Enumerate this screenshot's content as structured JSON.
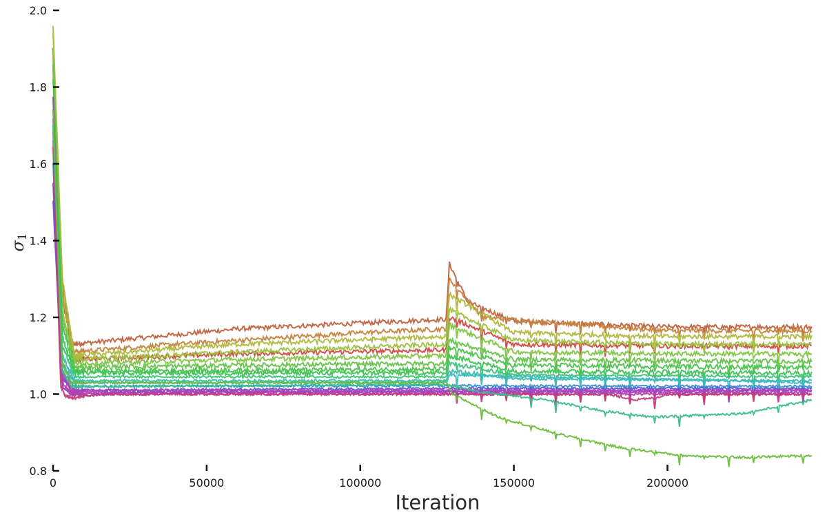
{
  "chart_data": {
    "type": "line",
    "title": "",
    "xlabel": "Iteration",
    "ylabel": "σ1",
    "ylabel_symbol": "σ",
    "ylabel_subscript": "1",
    "xlim": [
      0,
      247000
    ],
    "ylim": [
      0.8,
      2.0
    ],
    "x_ticks": [
      0,
      50000,
      100000,
      150000,
      200000
    ],
    "x_tick_labels": [
      "0",
      "50000",
      "100000",
      "150000",
      "200000"
    ],
    "y_ticks": [
      0.8,
      1.0,
      1.2,
      1.4,
      1.6,
      1.8,
      2.0
    ],
    "y_tick_labels": [
      "0.8",
      "1.0",
      "1.2",
      "1.4",
      "1.6",
      "1.8",
      "2.0"
    ],
    "grid": false,
    "legend": "none",
    "series": [
      {
        "color": "#c0623f",
        "points": [
          [
            0,
            1.9
          ],
          [
            3000,
            1.3
          ],
          [
            6000,
            1.13
          ],
          [
            20000,
            1.14
          ],
          [
            60000,
            1.17
          ],
          [
            100000,
            1.185
          ],
          [
            128000,
            1.195
          ],
          [
            129000,
            1.34
          ],
          [
            135000,
            1.24
          ],
          [
            150000,
            1.19
          ],
          [
            200000,
            1.175
          ],
          [
            247000,
            1.175
          ]
        ]
      },
      {
        "color": "#c4843f",
        "points": [
          [
            0,
            1.88
          ],
          [
            3000,
            1.28
          ],
          [
            6000,
            1.11
          ],
          [
            40000,
            1.13
          ],
          [
            100000,
            1.16
          ],
          [
            128000,
            1.17
          ],
          [
            129000,
            1.3
          ],
          [
            140000,
            1.2
          ],
          [
            200000,
            1.165
          ],
          [
            247000,
            1.165
          ]
        ]
      },
      {
        "color": "#d04a45",
        "points": [
          [
            0,
            1.85
          ],
          [
            3000,
            1.25
          ],
          [
            7000,
            1.09
          ],
          [
            60000,
            1.105
          ],
          [
            128000,
            1.115
          ],
          [
            129000,
            1.2
          ],
          [
            150000,
            1.13
          ],
          [
            200000,
            1.125
          ],
          [
            247000,
            1.125
          ]
        ]
      },
      {
        "color": "#b0b83d",
        "points": [
          [
            0,
            1.96
          ],
          [
            3000,
            1.3
          ],
          [
            7000,
            1.1
          ],
          [
            60000,
            1.13
          ],
          [
            128000,
            1.15
          ],
          [
            129000,
            1.26
          ],
          [
            150000,
            1.16
          ],
          [
            200000,
            1.15
          ],
          [
            247000,
            1.15
          ]
        ]
      },
      {
        "color": "#9cc13f",
        "points": [
          [
            0,
            1.94
          ],
          [
            3000,
            1.26
          ],
          [
            7000,
            1.09
          ],
          [
            60000,
            1.11
          ],
          [
            128000,
            1.13
          ],
          [
            129000,
            1.22
          ],
          [
            150000,
            1.14
          ],
          [
            200000,
            1.13
          ],
          [
            247000,
            1.13
          ]
        ]
      },
      {
        "color": "#82c446",
        "points": [
          [
            0,
            1.9
          ],
          [
            3000,
            1.22
          ],
          [
            7000,
            1.08
          ],
          [
            60000,
            1.09
          ],
          [
            128000,
            1.1
          ],
          [
            129000,
            1.18
          ],
          [
            150000,
            1.11
          ],
          [
            200000,
            1.105
          ],
          [
            247000,
            1.105
          ]
        ]
      },
      {
        "color": "#66c24a",
        "points": [
          [
            0,
            1.86
          ],
          [
            3000,
            1.2
          ],
          [
            7000,
            1.07
          ],
          [
            60000,
            1.075
          ],
          [
            128000,
            1.08
          ],
          [
            129000,
            1.14
          ],
          [
            150000,
            1.09
          ],
          [
            247000,
            1.085
          ]
        ]
      },
      {
        "color": "#4cc24c",
        "points": [
          [
            0,
            1.82
          ],
          [
            3000,
            1.18
          ],
          [
            7000,
            1.06
          ],
          [
            128000,
            1.065
          ],
          [
            129000,
            1.12
          ],
          [
            150000,
            1.075
          ],
          [
            247000,
            1.07
          ]
        ]
      },
      {
        "color": "#3ec252",
        "points": [
          [
            0,
            1.78
          ],
          [
            3000,
            1.15
          ],
          [
            7000,
            1.055
          ],
          [
            128000,
            1.055
          ],
          [
            129000,
            1.1
          ],
          [
            150000,
            1.06
          ],
          [
            247000,
            1.055
          ]
        ]
      },
      {
        "color": "#3cc27a",
        "points": [
          [
            0,
            1.74
          ],
          [
            3000,
            1.13
          ],
          [
            7000,
            1.045
          ],
          [
            128000,
            1.045
          ],
          [
            129000,
            1.08
          ],
          [
            150000,
            1.05
          ],
          [
            247000,
            1.045
          ]
        ]
      },
      {
        "color": "#3cbea6",
        "points": [
          [
            0,
            1.7
          ],
          [
            3000,
            1.1
          ],
          [
            7000,
            1.035
          ],
          [
            128000,
            1.035
          ],
          [
            129000,
            1.06
          ],
          [
            150000,
            1.04
          ],
          [
            247000,
            1.035
          ]
        ]
      },
      {
        "color": "#3cb6c6",
        "points": [
          [
            0,
            1.66
          ],
          [
            3000,
            1.08
          ],
          [
            7000,
            1.03
          ],
          [
            128000,
            1.03
          ],
          [
            129000,
            1.05
          ],
          [
            247000,
            1.03
          ]
        ]
      },
      {
        "color": "#3c8fd0",
        "points": [
          [
            0,
            1.6
          ],
          [
            3000,
            1.06
          ],
          [
            7000,
            1.02
          ],
          [
            128000,
            1.022
          ],
          [
            247000,
            1.02
          ]
        ]
      },
      {
        "color": "#5a5ad0",
        "points": [
          [
            0,
            1.55
          ],
          [
            3000,
            1.04
          ],
          [
            7000,
            1.01
          ],
          [
            128000,
            1.015
          ],
          [
            247000,
            1.015
          ]
        ]
      },
      {
        "color": "#7a4ad0",
        "points": [
          [
            0,
            1.5
          ],
          [
            3000,
            1.02
          ],
          [
            6000,
            1.0
          ],
          [
            12000,
            0.995
          ],
          [
            18000,
            1.0
          ],
          [
            22000,
            1.005
          ],
          [
            247000,
            1.01
          ]
        ]
      },
      {
        "color": "#9a44c4",
        "points": [
          [
            0,
            1.72
          ],
          [
            3000,
            1.05
          ],
          [
            6000,
            1.005
          ],
          [
            247000,
            1.005
          ]
        ]
      },
      {
        "color": "#b840b8",
        "points": [
          [
            0,
            1.78
          ],
          [
            3000,
            1.06
          ],
          [
            6000,
            1.01
          ],
          [
            247000,
            1.01
          ]
        ]
      },
      {
        "color": "#c03e9c",
        "points": [
          [
            0,
            1.68
          ],
          [
            3000,
            1.03
          ],
          [
            6000,
            1.0
          ],
          [
            247000,
            1.0
          ]
        ]
      },
      {
        "color": "#c43c7a",
        "points": [
          [
            0,
            1.64
          ],
          [
            2500,
            1.02
          ],
          [
            4000,
            0.995
          ],
          [
            7000,
            0.99
          ],
          [
            10000,
            0.995
          ],
          [
            14000,
            1.0
          ],
          [
            180000,
            1.0
          ],
          [
            190000,
            0.985
          ],
          [
            196000,
            0.99
          ],
          [
            200000,
            1.0
          ],
          [
            247000,
            1.0
          ]
        ]
      },
      {
        "color": "#3cbd8a",
        "points": [
          [
            0,
            1.7
          ],
          [
            3000,
            1.06
          ],
          [
            6000,
            1.02
          ],
          [
            128000,
            1.025
          ],
          [
            140000,
            1.005
          ],
          [
            160000,
            0.985
          ],
          [
            180000,
            0.955
          ],
          [
            195000,
            0.94
          ],
          [
            210000,
            0.945
          ],
          [
            225000,
            0.95
          ],
          [
            247000,
            0.985
          ]
        ]
      },
      {
        "color": "#6cbd3c",
        "points": [
          [
            0,
            1.74
          ],
          [
            3000,
            1.08
          ],
          [
            6000,
            1.03
          ],
          [
            128000,
            1.03
          ],
          [
            130000,
            1.0
          ],
          [
            145000,
            0.94
          ],
          [
            165000,
            0.895
          ],
          [
            185000,
            0.86
          ],
          [
            205000,
            0.84
          ],
          [
            225000,
            0.835
          ],
          [
            247000,
            0.84
          ]
        ]
      }
    ]
  }
}
